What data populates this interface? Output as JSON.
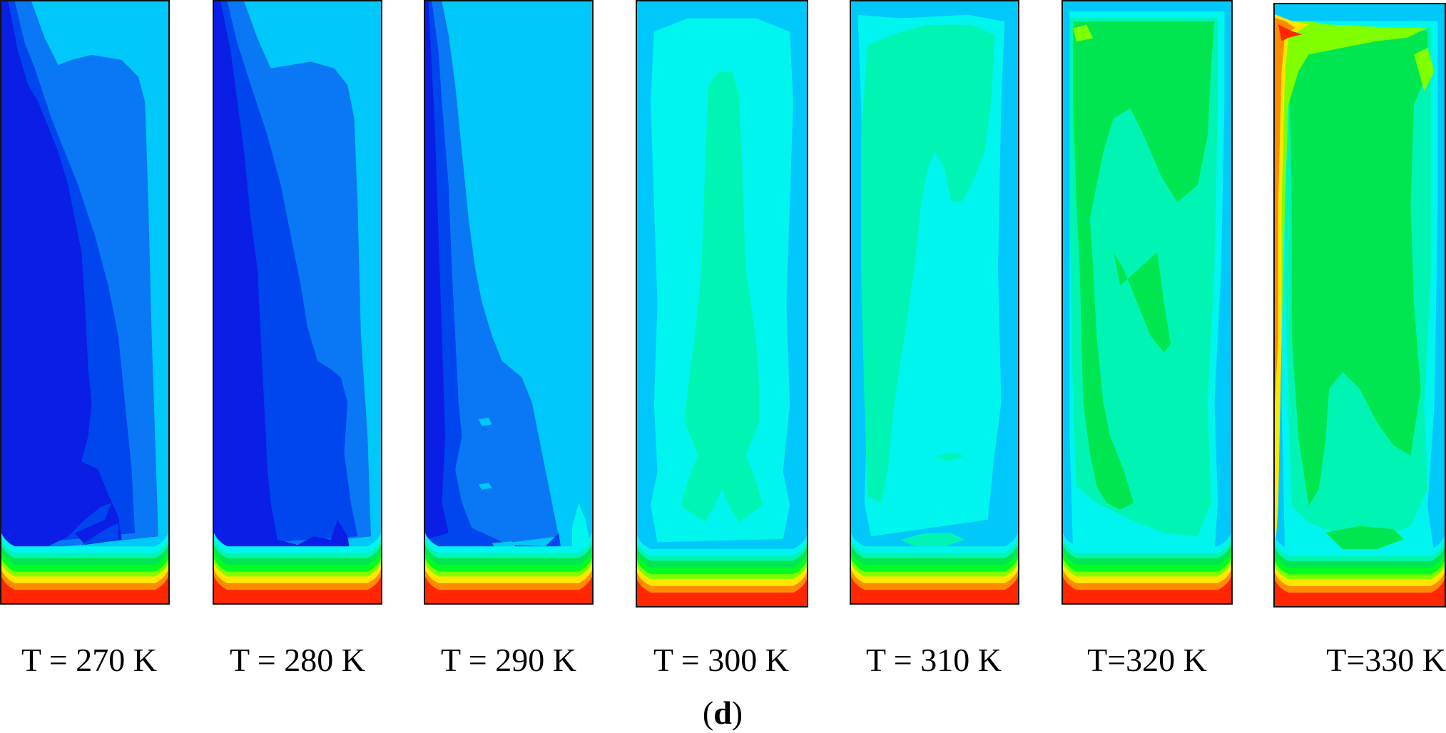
{
  "figure": {
    "sublabel_open": "(",
    "sublabel_letter": "d",
    "sublabel_close": ")"
  },
  "panels": [
    {
      "label": "T = 270 K",
      "stage": "cold-1"
    },
    {
      "label": "T = 280 K",
      "stage": "cold-2"
    },
    {
      "label": "T = 290 K",
      "stage": "cold-3"
    },
    {
      "label": "T = 300 K",
      "stage": "mid-1"
    },
    {
      "label": "T = 310 K",
      "stage": "mid-2"
    },
    {
      "label": "T=320 K",
      "stage": "warm-1"
    },
    {
      "label": "T=330 K",
      "stage": "warm-2"
    }
  ],
  "colormap": {
    "darkblue": "#0a1ee6",
    "blue": "#0046ee",
    "midblue": "#0a78f5",
    "lightblue": "#00c8fa",
    "skyblue": "#00d8f6",
    "cyan": "#00f5ee",
    "aquagreen": "#00f5b4",
    "green": "#00e650",
    "brightgreen": "#00ff20",
    "yellowgreen": "#7fff00",
    "yellow": "#ffe600",
    "orange": "#ff8c00",
    "red": "#ff2600"
  }
}
